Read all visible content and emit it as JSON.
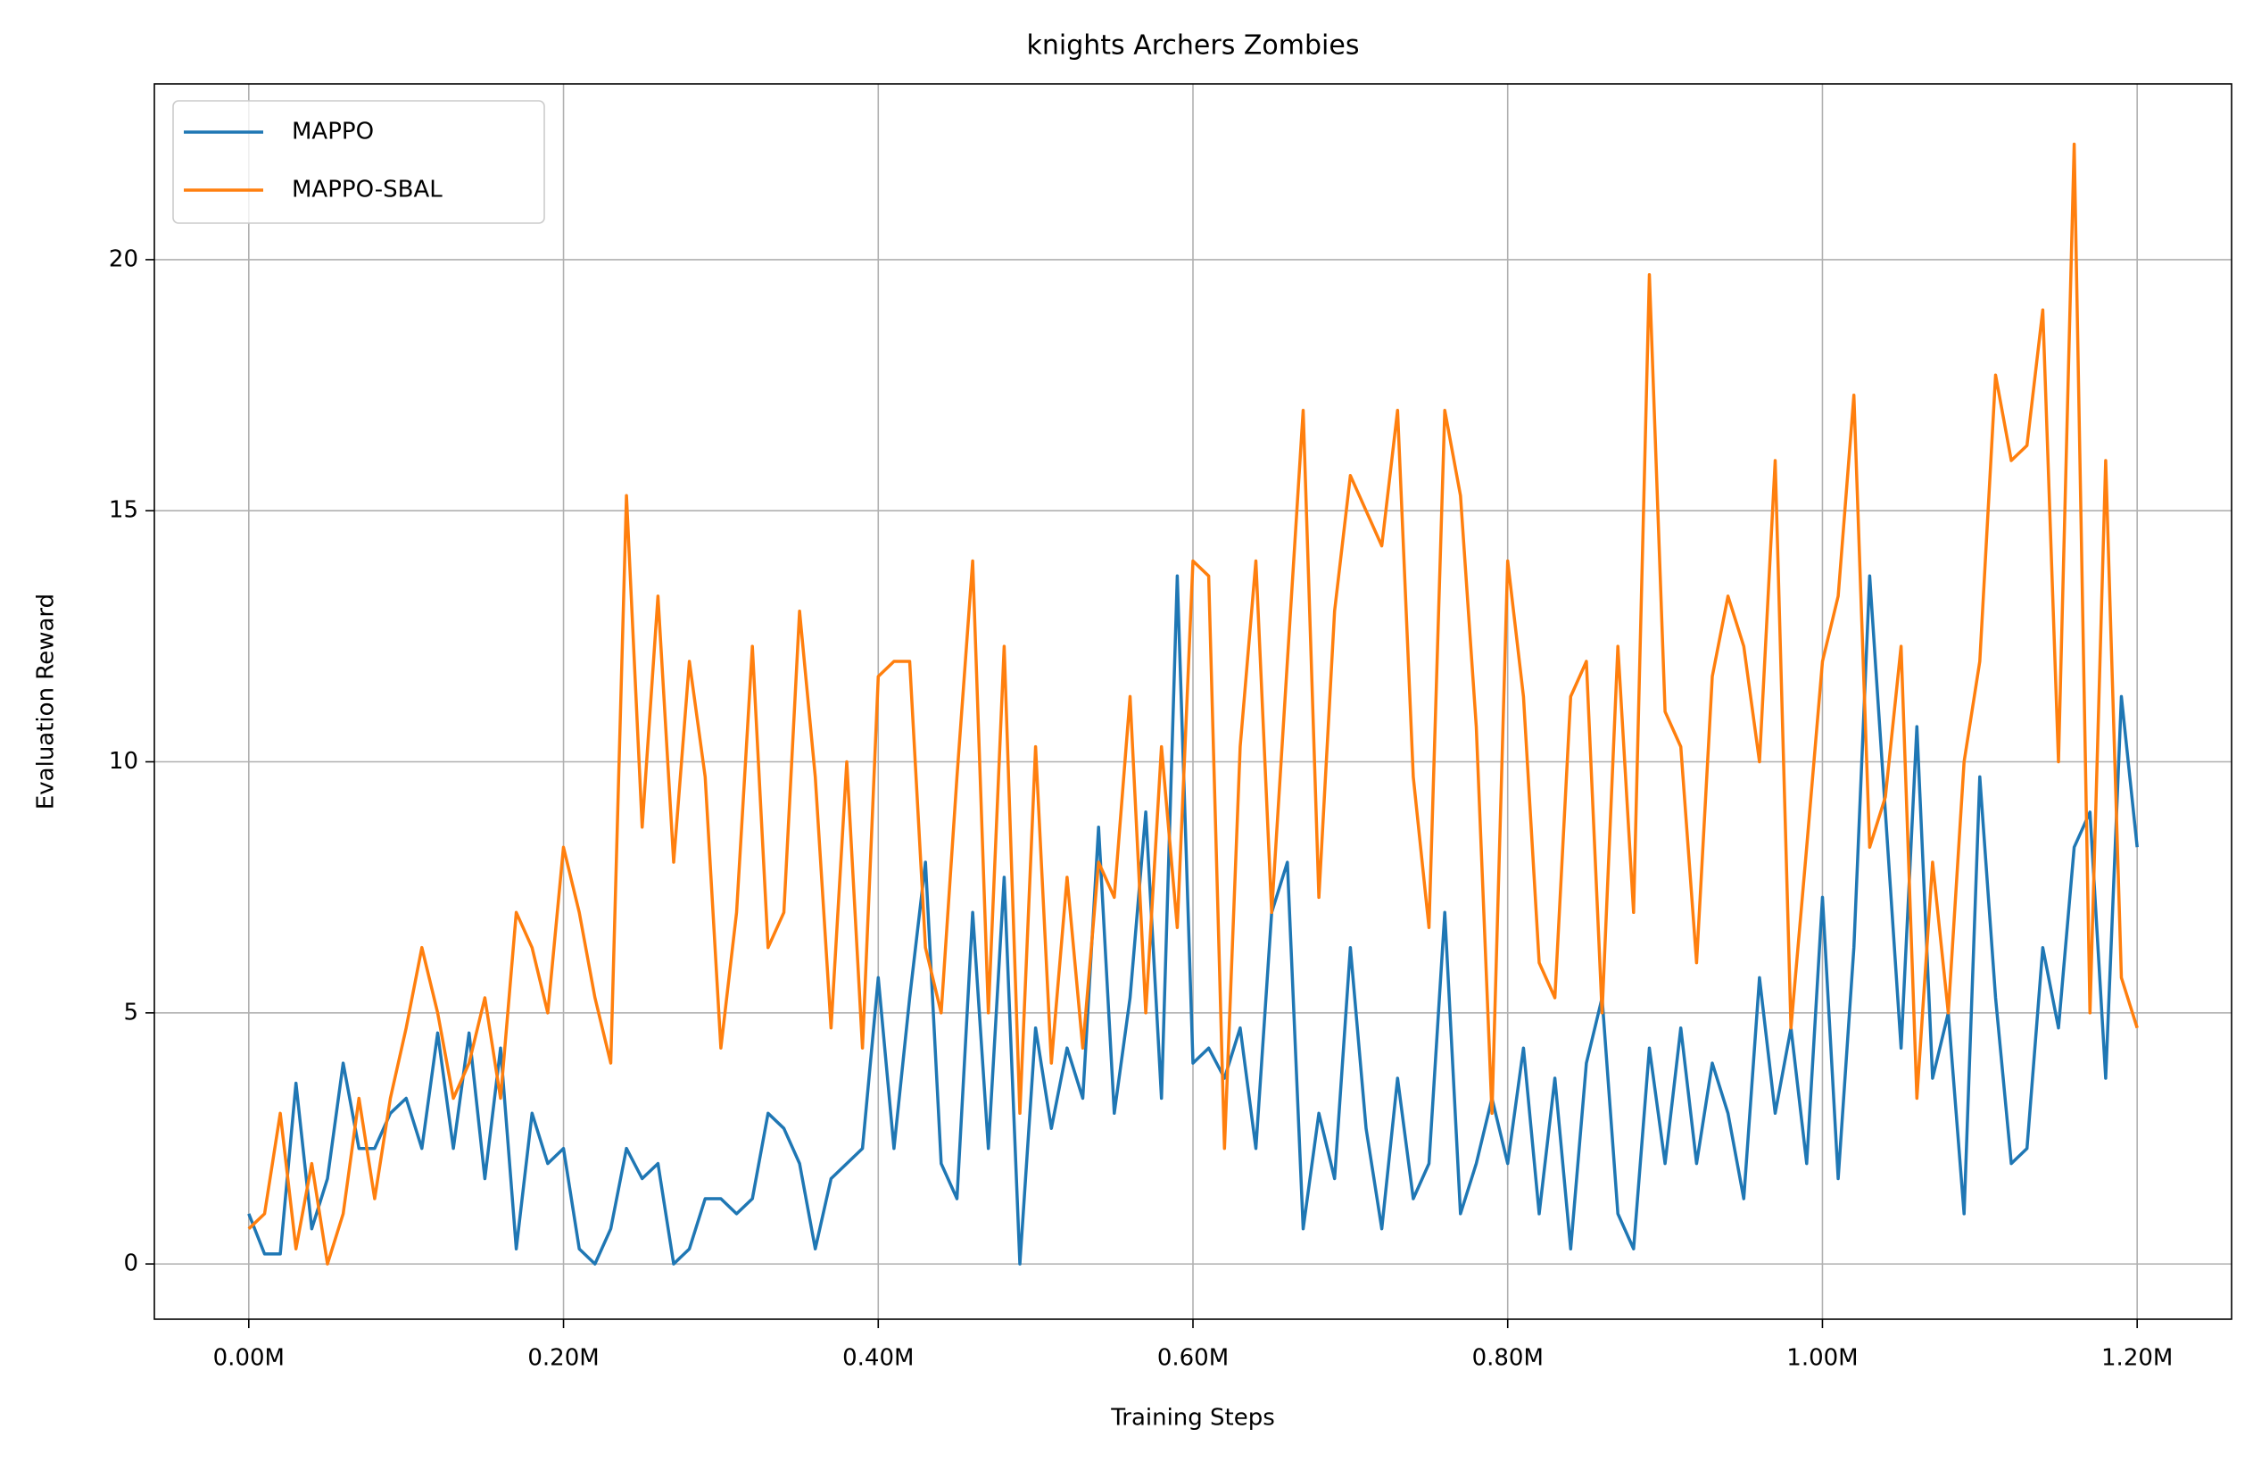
{
  "chart_data": {
    "type": "line",
    "title": "knights Archers Zombies",
    "x_label": "Training Steps",
    "y_label": "Evaluation Reward",
    "x": [
      0,
      10000,
      20000,
      30000,
      40000,
      50000,
      60000,
      70000,
      80000,
      90000,
      100000,
      110000,
      120000,
      130000,
      140000,
      150000,
      160000,
      170000,
      180000,
      190000,
      200000,
      210000,
      220000,
      230000,
      240000,
      250000,
      260000,
      270000,
      280000,
      290000,
      300000,
      310000,
      320000,
      330000,
      340000,
      350000,
      360000,
      370000,
      380000,
      390000,
      400000,
      410000,
      420000,
      430000,
      440000,
      450000,
      460000,
      470000,
      480000,
      490000,
      500000,
      510000,
      520000,
      530000,
      540000,
      550000,
      560000,
      570000,
      580000,
      590000,
      600000,
      610000,
      620000,
      630000,
      640000,
      650000,
      660000,
      670000,
      680000,
      690000,
      700000,
      710000,
      720000,
      730000,
      740000,
      750000,
      760000,
      770000,
      780000,
      790000,
      800000,
      810000,
      820000,
      830000,
      840000,
      850000,
      860000,
      870000,
      880000,
      890000,
      900000,
      910000,
      920000,
      930000,
      940000,
      950000,
      960000,
      970000,
      980000,
      990000,
      1000000,
      1010000,
      1020000,
      1030000,
      1040000,
      1050000,
      1060000,
      1070000,
      1080000,
      1090000,
      1100000,
      1110000,
      1120000,
      1130000,
      1140000,
      1150000,
      1160000,
      1170000,
      1180000,
      1190000,
      1200000
    ],
    "series": [
      {
        "name": "MAPPO",
        "color": "#1f77b4",
        "values": [
          1.0,
          0.2,
          0.2,
          3.6,
          0.7,
          1.7,
          4.0,
          2.3,
          2.3,
          3.0,
          3.3,
          2.3,
          4.6,
          2.3,
          4.6,
          1.7,
          4.3,
          0.3,
          3.0,
          2.0,
          2.3,
          0.3,
          0,
          0.7,
          2.3,
          1.7,
          2.0,
          0,
          0.3,
          1.3,
          1.3,
          1.0,
          1.3,
          3.0,
          2.7,
          2.0,
          0.3,
          1.7,
          2.0,
          2.3,
          5.7,
          2.3,
          5.3,
          8.0,
          2.0,
          1.3,
          7.0,
          2.3,
          7.7,
          0,
          4.7,
          2.7,
          4.3,
          3.3,
          8.7,
          3.0,
          5.3,
          9.0,
          3.3,
          13.7,
          4.0,
          4.3,
          3.7,
          4.7,
          2.3,
          7.0,
          8.0,
          0.7,
          3.0,
          1.7,
          6.3,
          2.7,
          0.7,
          3.7,
          1.3,
          2.0,
          7.0,
          1.0,
          2.0,
          3.3,
          2.0,
          4.3,
          1.0,
          3.7,
          0.3,
          4.0,
          5.3,
          1.0,
          0.3,
          4.3,
          2.0,
          4.7,
          2.0,
          4.0,
          3.0,
          1.3,
          5.7,
          3.0,
          4.7,
          2.0,
          7.3,
          1.7,
          6.3,
          13.7,
          9.0,
          4.3,
          10.7,
          3.7,
          5.0,
          1.0,
          9.7,
          5.3,
          2.0,
          2.3,
          6.3,
          4.7,
          8.3,
          9.0,
          3.7,
          11.3,
          8.3
        ]
      },
      {
        "name": "MAPPO-SBAL",
        "color": "#ff7f0e",
        "values": [
          0.7,
          1.0,
          3.0,
          0.3,
          2.0,
          0,
          1.0,
          3.3,
          1.3,
          3.3,
          4.7,
          6.3,
          5.0,
          3.3,
          4.0,
          5.3,
          3.3,
          7.0,
          6.3,
          5.0,
          8.3,
          7.0,
          5.3,
          4.0,
          15.3,
          8.7,
          13.3,
          8.0,
          12.0,
          9.7,
          4.3,
          7.0,
          12.3,
          6.3,
          7.0,
          13.0,
          9.7,
          4.7,
          10.0,
          4.3,
          11.7,
          12.0,
          12.0,
          6.3,
          5.0,
          9.7,
          14.0,
          5.0,
          12.3,
          3.0,
          10.3,
          4.0,
          7.7,
          4.3,
          8.0,
          7.3,
          11.3,
          5.0,
          10.3,
          6.7,
          14.0,
          13.7,
          2.3,
          10.3,
          14.0,
          7.0,
          12.0,
          17.0,
          7.3,
          13.0,
          15.7,
          15.0,
          14.3,
          17.0,
          9.7,
          6.7,
          17.0,
          15.3,
          10.7,
          3.0,
          14.0,
          11.3,
          6.0,
          5.3,
          11.3,
          12.0,
          5.0,
          12.3,
          7.0,
          19.7,
          11.0,
          10.3,
          6.0,
          11.7,
          13.3,
          12.3,
          10.0,
          16.0,
          4.7,
          8.3,
          12.0,
          13.3,
          17.3,
          8.3,
          9.3,
          12.3,
          3.3,
          8.0,
          5.0,
          10.0,
          12.0,
          17.7,
          16.0,
          16.3,
          19.0,
          10.0,
          22.3,
          5.0,
          16.0,
          5.7,
          4.7
        ]
      }
    ],
    "xlim": [
      -60000,
      1260000
    ],
    "xticks": [
      {
        "value": 0,
        "label": "0.00M"
      },
      {
        "value": 200000,
        "label": "0.20M"
      },
      {
        "value": 400000,
        "label": "0.40M"
      },
      {
        "value": 600000,
        "label": "0.60M"
      },
      {
        "value": 800000,
        "label": "0.80M"
      },
      {
        "value": 1000000,
        "label": "1.00M"
      },
      {
        "value": 1200000,
        "label": "1.20M"
      }
    ],
    "ylim": [
      -1.1,
      23.5
    ],
    "yticks": [
      0,
      5,
      10,
      15,
      20
    ],
    "grid": true,
    "legend": "upper-left"
  }
}
